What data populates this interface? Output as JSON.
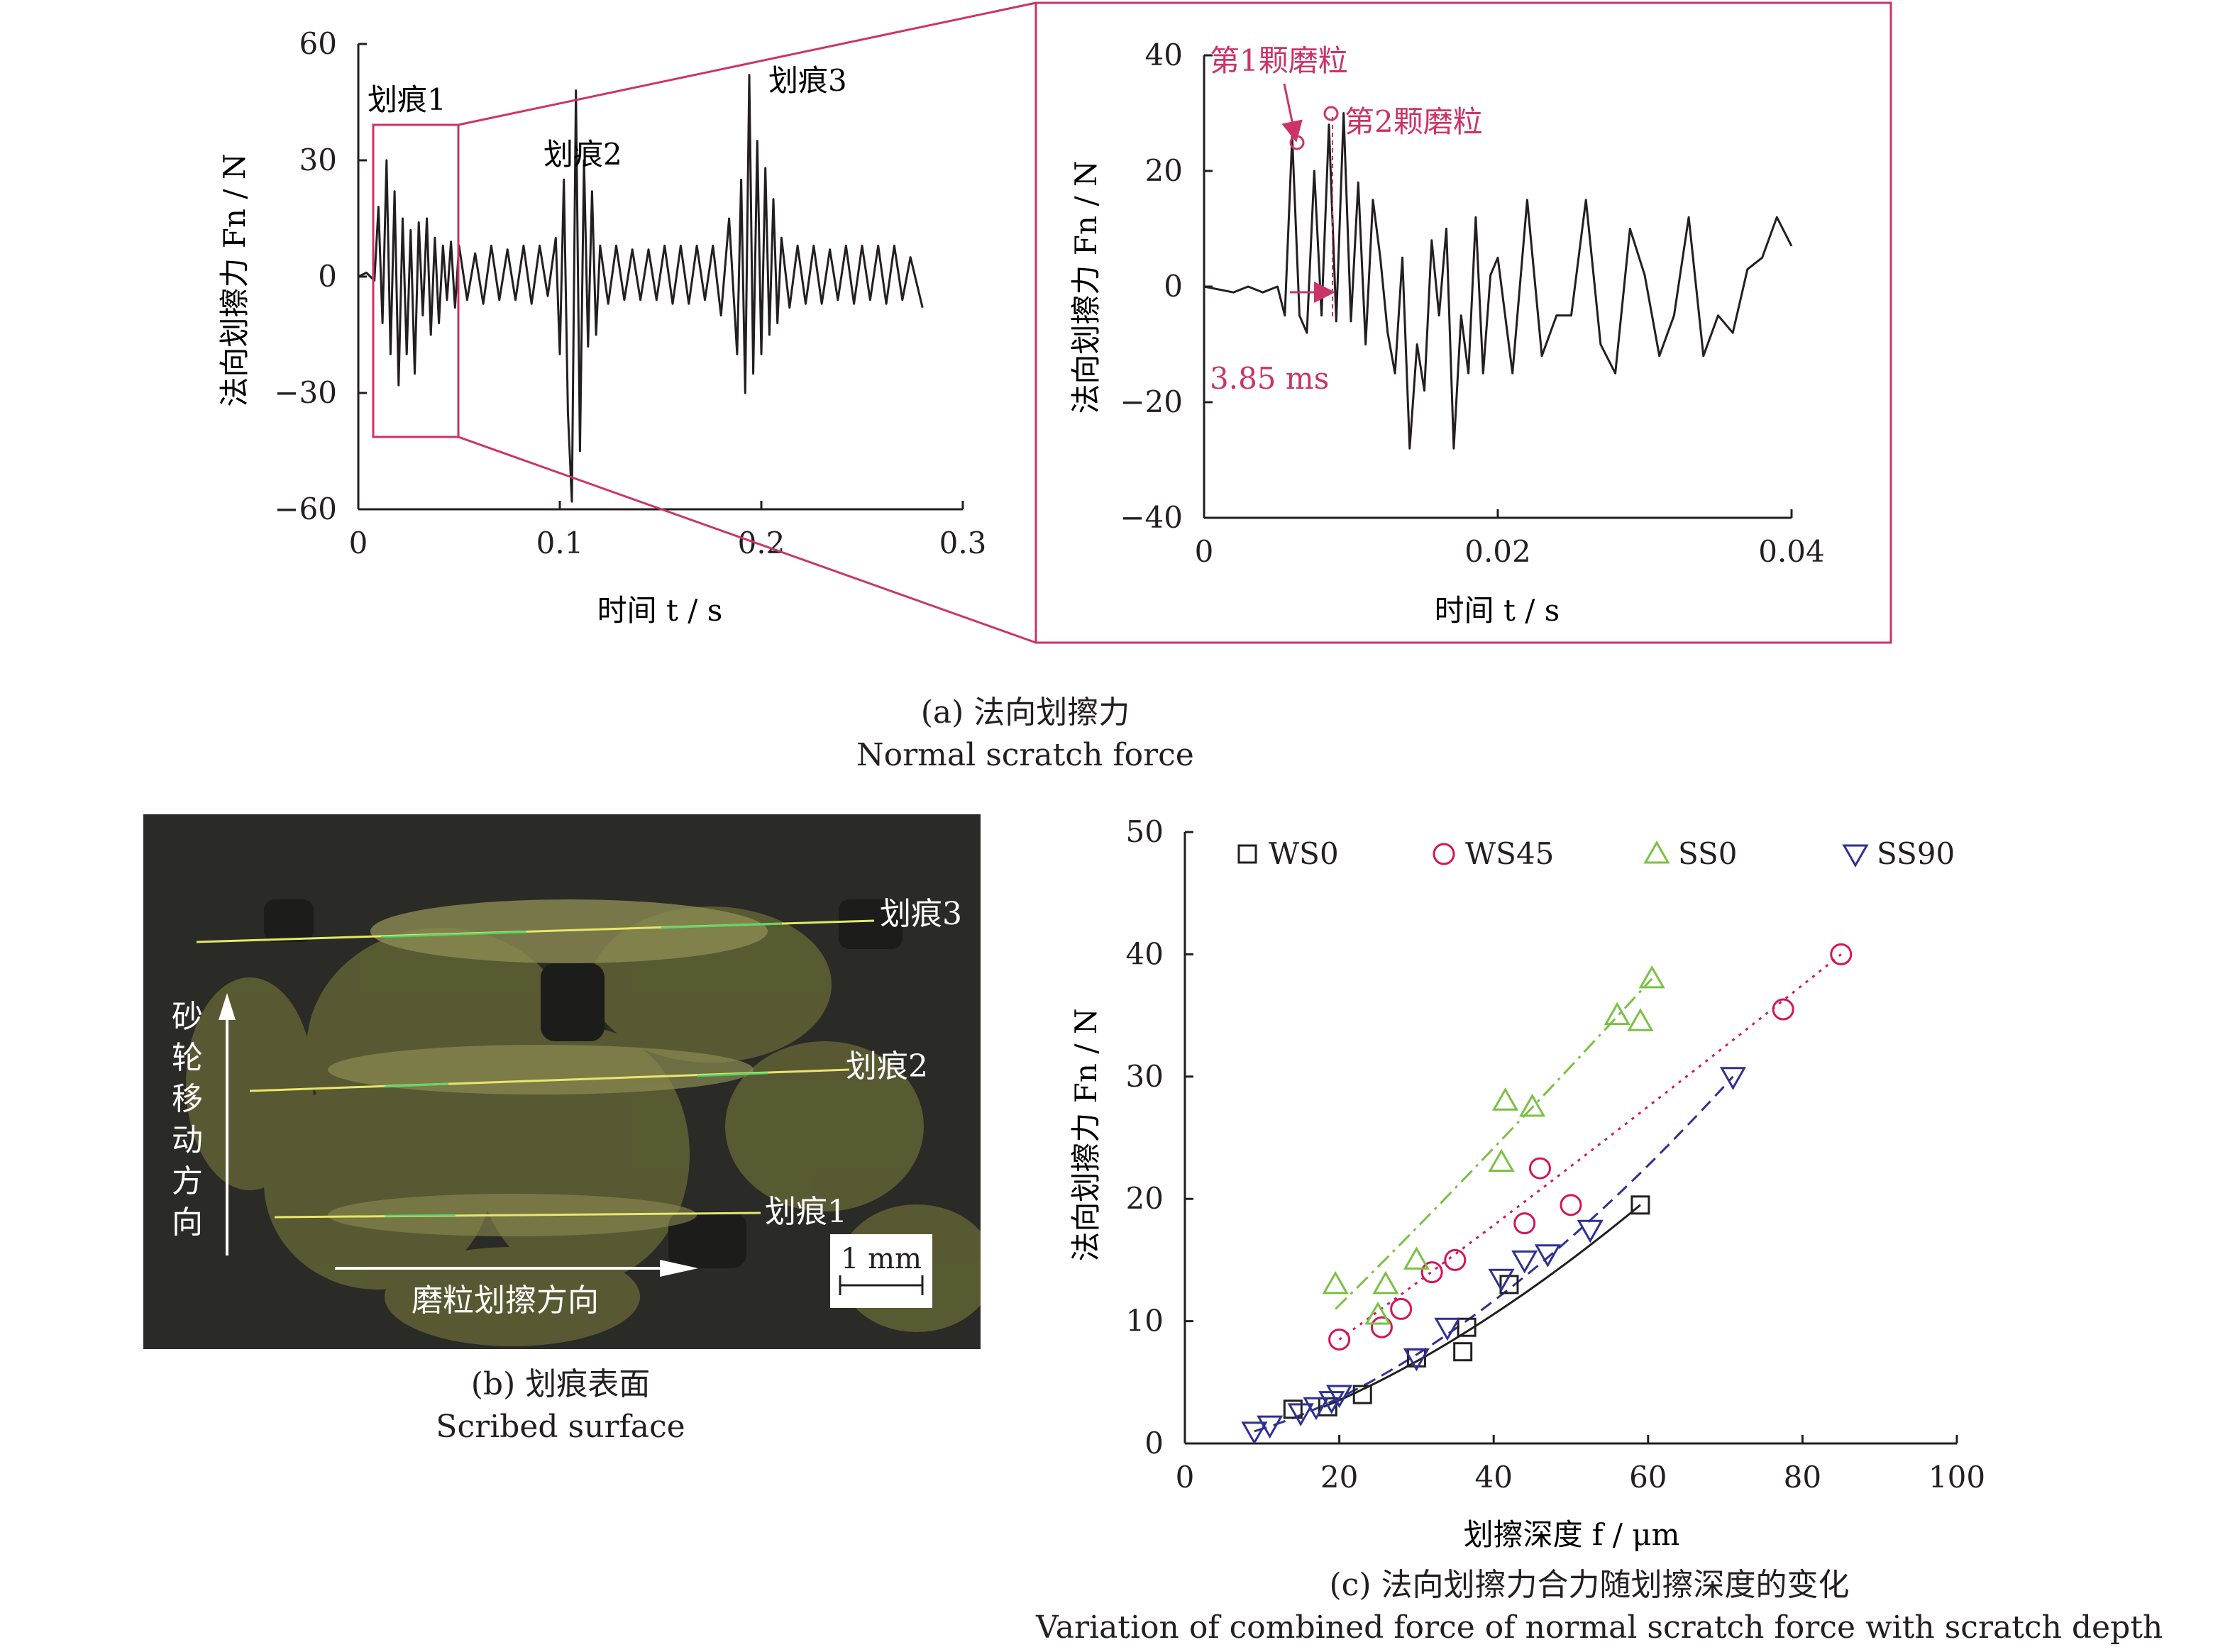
{
  "captions": {
    "a_cn": "(a) 法向划擦力",
    "a_en": "Normal scratch force",
    "b_cn": "(b) 划痕表面",
    "b_en": "Scribed surface",
    "c_cn": "(c) 法向划擦力合力随划擦深度的变化",
    "c_en": "Variation of combined force of normal scratch force with scratch depth"
  },
  "colors": {
    "highlight": "#cc3366",
    "ink": "#231f20",
    "ws0": "#231f20",
    "ws45": "#d4145a",
    "ss0": "#7ac143",
    "ss90": "#2e3192"
  },
  "photo": {
    "labels": [
      "划痕3",
      "划痕2",
      "划痕1"
    ],
    "wheel_direction": [
      "砂",
      "轮",
      "移",
      "动",
      "方",
      "向"
    ],
    "grain_direction": "磨粒划擦方向",
    "scale_bar": "1 mm"
  },
  "chart_data": [
    {
      "type": "line",
      "id": "a_left",
      "xlabel": "时间 t / s",
      "ylabel": "法向划擦力 Fn / N",
      "xlim": [
        0,
        0.3
      ],
      "ylim": [
        -60,
        60
      ],
      "xticks": [
        "0",
        "0.1",
        "0.2",
        "0.3"
      ],
      "yticks": [
        "−60",
        "−30",
        "0",
        "30",
        "60"
      ],
      "annotations": [
        "划痕1",
        "划痕2",
        "划痕3"
      ],
      "series": [
        {
          "x": [
            0,
            0.004,
            0.008,
            0.01,
            0.012,
            0.014,
            0.016,
            0.018,
            0.02,
            0.022,
            0.024,
            0.026,
            0.028,
            0.03,
            0.032,
            0.034,
            0.036,
            0.038,
            0.04,
            0.042,
            0.044,
            0.046,
            0.048,
            0.05,
            0.054,
            0.058,
            0.062,
            0.066,
            0.07,
            0.074,
            0.078,
            0.082,
            0.086,
            0.09,
            0.094,
            0.098,
            0.1,
            0.102,
            0.104,
            0.106,
            0.108,
            0.11,
            0.112,
            0.114,
            0.116,
            0.118,
            0.12,
            0.124,
            0.128,
            0.132,
            0.136,
            0.14,
            0.144,
            0.148,
            0.152,
            0.156,
            0.16,
            0.164,
            0.168,
            0.172,
            0.176,
            0.18,
            0.184,
            0.188,
            0.19,
            0.192,
            0.194,
            0.196,
            0.198,
            0.2,
            0.202,
            0.204,
            0.206,
            0.208,
            0.21,
            0.214,
            0.218,
            0.222,
            0.226,
            0.23,
            0.234,
            0.238,
            0.242,
            0.246,
            0.25,
            0.254,
            0.258,
            0.262,
            0.266,
            0.27,
            0.274,
            0.28
          ],
          "y": [
            0,
            1,
            -1,
            18,
            -12,
            30,
            -20,
            22,
            -28,
            15,
            -20,
            12,
            -25,
            14,
            -10,
            15,
            -15,
            10,
            -12,
            8,
            -6,
            9,
            -8,
            8,
            -6,
            6,
            -7,
            8,
            -6,
            7,
            -6,
            8,
            -7,
            8,
            -5,
            10,
            -20,
            25,
            -35,
            -58,
            48,
            -45,
            30,
            -18,
            22,
            -15,
            8,
            -7,
            8,
            -6,
            7,
            -6,
            7,
            -6,
            8,
            -7,
            8,
            -7,
            8,
            -6,
            8,
            -10,
            15,
            -20,
            25,
            -30,
            52,
            -25,
            35,
            -20,
            28,
            -15,
            20,
            -12,
            10,
            -8,
            8,
            -7,
            8,
            -7,
            7,
            -6,
            8,
            -7,
            8,
            -6,
            8,
            -7,
            8,
            -6,
            5,
            -8
          ]
        }
      ]
    },
    {
      "type": "line",
      "id": "a_right",
      "xlabel": "时间 t / s",
      "ylabel": "法向划擦力 Fn / N",
      "xlim": [
        0,
        0.04
      ],
      "ylim": [
        -40,
        40
      ],
      "xticks": [
        "0",
        "0.02",
        "0.04"
      ],
      "yticks": [
        "−40",
        "−20",
        "0",
        "20",
        "40"
      ],
      "annotations": [
        "第1颗磨粒",
        "第2颗磨粒",
        "3.85 ms"
      ],
      "series": [
        {
          "x": [
            0,
            0.002,
            0.003,
            0.004,
            0.005,
            0.0055,
            0.006,
            0.0065,
            0.007,
            0.0075,
            0.008,
            0.0085,
            0.009,
            0.0095,
            0.01,
            0.0105,
            0.011,
            0.0115,
            0.012,
            0.0125,
            0.013,
            0.0135,
            0.014,
            0.0145,
            0.015,
            0.0155,
            0.016,
            0.0165,
            0.017,
            0.0175,
            0.018,
            0.0185,
            0.019,
            0.0195,
            0.02,
            0.021,
            0.022,
            0.023,
            0.024,
            0.025,
            0.026,
            0.027,
            0.028,
            0.029,
            0.03,
            0.031,
            0.032,
            0.033,
            0.034,
            0.035,
            0.036,
            0.037,
            0.038,
            0.039,
            0.04
          ],
          "y": [
            0,
            -1,
            0,
            -1,
            0,
            -5,
            26,
            -5,
            -8,
            20,
            -5,
            28,
            -6,
            30,
            -6,
            18,
            -10,
            15,
            5,
            -8,
            -15,
            5,
            -28,
            -10,
            -18,
            8,
            -5,
            10,
            -28,
            -5,
            -15,
            12,
            -15,
            2,
            5,
            -15,
            15,
            -12,
            -5,
            -5,
            15,
            -10,
            -15,
            10,
            2,
            -12,
            -5,
            12,
            -12,
            -5,
            -8,
            3,
            5,
            12,
            7
          ]
        }
      ]
    },
    {
      "type": "scatter",
      "id": "c",
      "xlabel": "划擦深度 f / μm",
      "ylabel": "法向划擦力 Fn / N",
      "xlim": [
        0,
        100
      ],
      "ylim": [
        0,
        50
      ],
      "xticks": [
        "0",
        "20",
        "40",
        "60",
        "80",
        "100"
      ],
      "yticks": [
        "0",
        "10",
        "20",
        "30",
        "40",
        "50"
      ],
      "legend_position": "top",
      "series": [
        {
          "name": "WS0",
          "marker": "square",
          "x": [
            14,
            18.5,
            23,
            30,
            36,
            36.5,
            42,
            59
          ],
          "y": [
            2.8,
            3.0,
            4.0,
            7.0,
            7.5,
            9.5,
            13,
            19.5
          ]
        },
        {
          "name": "WS45",
          "marker": "circle",
          "x": [
            20,
            25.5,
            28,
            32,
            35,
            44,
            46,
            50,
            77.5,
            85
          ],
          "y": [
            8.5,
            9.5,
            11,
            14,
            15,
            18,
            22.5,
            19.5,
            35.5,
            40
          ]
        },
        {
          "name": "SS0",
          "marker": "triangle-up",
          "x": [
            19.5,
            25,
            26,
            30,
            41,
            41.5,
            45,
            56,
            59,
            60.5
          ],
          "y": [
            13,
            10.5,
            13,
            15,
            23,
            28,
            27.5,
            35,
            34.5,
            38
          ]
        },
        {
          "name": "SS90",
          "marker": "triangle-down",
          "x": [
            9,
            11,
            15,
            17,
            19,
            20,
            30,
            34,
            41,
            44,
            47,
            52.5,
            71
          ],
          "y": [
            1.0,
            1.5,
            2.5,
            3.0,
            3.5,
            4.0,
            7.0,
            9.5,
            13.5,
            15.0,
            15.5,
            17.5,
            30
          ]
        }
      ],
      "fits": [
        {
          "name": "WS0",
          "style": "solid",
          "x": [
            18,
            59
          ],
          "y": [
            3.0,
            19.5
          ]
        },
        {
          "name": "WS45",
          "style": "dotted",
          "x": [
            20,
            85
          ],
          "y": [
            8.5,
            40
          ]
        },
        {
          "name": "SS0",
          "style": "dashdot",
          "x": [
            19.5,
            60.5
          ],
          "y": [
            11,
            38
          ]
        },
        {
          "name": "SS90",
          "style": "dashed",
          "x": [
            9,
            71
          ],
          "y": [
            1.0,
            30
          ]
        }
      ]
    }
  ]
}
